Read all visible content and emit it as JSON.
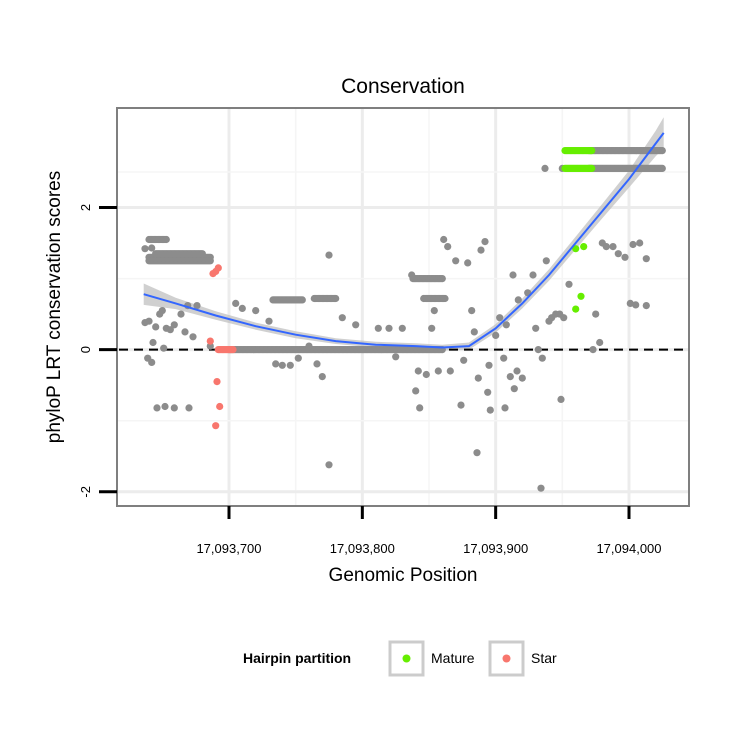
{
  "chart_data": {
    "type": "scatter",
    "title": "Conservation",
    "xlabel": "Genomic Position",
    "ylabel": "phyloP LRT conservation scores",
    "xlim": [
      17093616,
      17094045
    ],
    "ylim": [
      -2.2,
      3.4
    ],
    "x_ticks": [
      17093700,
      17093800,
      17093900,
      17094000
    ],
    "x_tick_labels": [
      "17,093,700",
      "17,093,800",
      "17,093,900",
      "17,094,000"
    ],
    "y_ticks": [
      -2,
      0,
      2
    ],
    "y_tick_labels": [
      "-2",
      "0",
      "2"
    ],
    "reference_line": {
      "y": 0,
      "style": "dashed"
    },
    "grid": true,
    "legend": {
      "title": "Hairpin partition",
      "position": "bottom",
      "entries": [
        {
          "label": "Mature",
          "color": "#66ee00"
        },
        {
          "label": "Star",
          "color": "#f8766d"
        }
      ]
    },
    "colors": {
      "other": "#8c8c8c",
      "mature": "#66ee00",
      "star": "#f8766d",
      "smooth": "#3366ff",
      "ribbon": "#c0c0c0"
    },
    "series": [
      {
        "group": "other",
        "runs": [
          {
            "x": [
              17093640,
              17093653
            ],
            "y": 1.55
          },
          {
            "x": [
              17093640,
              17093686
            ],
            "y": 1.3
          },
          {
            "x": [
              17093640,
              17093686
            ],
            "y": 1.25
          },
          {
            "x": [
              17093645,
              17093680
            ],
            "y": 1.35
          },
          {
            "x": [
              17093733,
              17093755
            ],
            "y": 0.7
          },
          {
            "x": [
              17093764,
              17093780
            ],
            "y": 0.72
          },
          {
            "x": [
              17093700,
              17093860
            ],
            "y": 0.0
          },
          {
            "x": [
              17093838,
              17093860
            ],
            "y": 1.0
          },
          {
            "x": [
              17093846,
              17093862
            ],
            "y": 0.72
          },
          {
            "x": [
              17093970,
              17094025
            ],
            "y": 2.8
          },
          {
            "x": [
              17093970,
              17094025
            ],
            "y": 2.55
          }
        ],
        "points": [
          [
            17093637,
            1.42
          ],
          [
            17093642,
            1.43
          ],
          [
            17093637,
            0.38
          ],
          [
            17093640,
            0.4
          ],
          [
            17093645,
            0.32
          ],
          [
            17093639,
            -0.12
          ],
          [
            17093642,
            -0.18
          ],
          [
            17093643,
            0.1
          ],
          [
            17093648,
            0.5
          ],
          [
            17093650,
            0.55
          ],
          [
            17093653,
            0.3
          ],
          [
            17093656,
            0.28
          ],
          [
            17093659,
            0.35
          ],
          [
            17093664,
            0.5
          ],
          [
            17093669,
            0.62
          ],
          [
            17093676,
            0.62
          ],
          [
            17093673,
            0.18
          ],
          [
            17093667,
            0.25
          ],
          [
            17093651,
            0.02
          ],
          [
            17093646,
            -0.82
          ],
          [
            17093652,
            -0.8
          ],
          [
            17093659,
            -0.82
          ],
          [
            17093670,
            -0.82
          ],
          [
            17093686,
            0.05
          ],
          [
            17093705,
            0.65
          ],
          [
            17093710,
            0.58
          ],
          [
            17093720,
            0.55
          ],
          [
            17093730,
            0.4
          ],
          [
            17093735,
            -0.2
          ],
          [
            17093740,
            -0.22
          ],
          [
            17093746,
            -0.22
          ],
          [
            17093752,
            -0.12
          ],
          [
            17093760,
            0.05
          ],
          [
            17093766,
            -0.2
          ],
          [
            17093770,
            -0.38
          ],
          [
            17093775,
            1.33
          ],
          [
            17093775,
            -1.62
          ],
          [
            17093785,
            0.45
          ],
          [
            17093795,
            0.35
          ],
          [
            17093812,
            0.3
          ],
          [
            17093820,
            0.3
          ],
          [
            17093825,
            -0.1
          ],
          [
            17093830,
            0.3
          ],
          [
            17093837,
            1.05
          ],
          [
            17093840,
            -0.58
          ],
          [
            17093843,
            -0.82
          ],
          [
            17093842,
            -0.3
          ],
          [
            17093848,
            -0.35
          ],
          [
            17093852,
            0.3
          ],
          [
            17093854,
            0.55
          ],
          [
            17093857,
            -0.3
          ],
          [
            17093861,
            1.55
          ],
          [
            17093864,
            1.45
          ],
          [
            17093866,
            -0.3
          ],
          [
            17093870,
            1.25
          ],
          [
            17093876,
            -0.15
          ],
          [
            17093874,
            -0.78
          ],
          [
            17093879,
            1.22
          ],
          [
            17093882,
            0.55
          ],
          [
            17093884,
            0.25
          ],
          [
            17093887,
            -0.4
          ],
          [
            17093889,
            1.4
          ],
          [
            17093892,
            1.52
          ],
          [
            17093894,
            -0.6
          ],
          [
            17093895,
            -0.22
          ],
          [
            17093896,
            -0.85
          ],
          [
            17093900,
            0.2
          ],
          [
            17093903,
            0.45
          ],
          [
            17093906,
            -0.12
          ],
          [
            17093907,
            -0.82
          ],
          [
            17093908,
            0.35
          ],
          [
            17093911,
            -0.38
          ],
          [
            17093913,
            1.05
          ],
          [
            17093914,
            -0.55
          ],
          [
            17093916,
            -0.3
          ],
          [
            17093917,
            0.7
          ],
          [
            17093920,
            -0.4
          ],
          [
            17093924,
            0.8
          ],
          [
            17093928,
            1.05
          ],
          [
            17093930,
            0.3
          ],
          [
            17093932,
            0.0
          ],
          [
            17093935,
            -0.12
          ],
          [
            17093938,
            1.25
          ],
          [
            17093940,
            0.4
          ],
          [
            17093942,
            0.45
          ],
          [
            17093945,
            0.5
          ],
          [
            17093948,
            0.5
          ],
          [
            17093934,
            -1.95
          ],
          [
            17093937,
            2.55
          ],
          [
            17093949,
            -0.7
          ],
          [
            17093951,
            0.45
          ],
          [
            17093955,
            0.92
          ],
          [
            17093886,
            -1.45
          ],
          [
            17093950,
            2.55
          ],
          [
            17093980,
            1.5
          ],
          [
            17093983,
            1.45
          ],
          [
            17093988,
            1.45
          ],
          [
            17093992,
            1.35
          ],
          [
            17093997,
            1.3
          ],
          [
            17094003,
            1.48
          ],
          [
            17094008,
            1.5
          ],
          [
            17094013,
            1.28
          ],
          [
            17093975,
            0.5
          ],
          [
            17093973,
            0.0
          ],
          [
            17093978,
            0.1
          ],
          [
            17094001,
            0.65
          ],
          [
            17094005,
            0.63
          ],
          [
            17094013,
            0.62
          ]
        ]
      },
      {
        "group": "mature",
        "runs": [
          {
            "x": [
              17093952,
              17093972
            ],
            "y": 2.8
          },
          {
            "x": [
              17093952,
              17093972
            ],
            "y": 2.55
          }
        ],
        "points": [
          [
            17093960,
            1.42
          ],
          [
            17093966,
            1.45
          ],
          [
            17093964,
            0.75
          ],
          [
            17093960,
            0.57
          ]
        ]
      },
      {
        "group": "star",
        "runs": [
          {
            "x": [
              17093692,
              17093703
            ],
            "y": 0.0
          }
        ],
        "points": [
          [
            17093688,
            1.07
          ],
          [
            17093690,
            1.1
          ],
          [
            17093692,
            1.15
          ],
          [
            17093686,
            0.12
          ],
          [
            17093691,
            -0.45
          ],
          [
            17093693,
            -0.8
          ],
          [
            17093690,
            -1.07
          ]
        ]
      }
    ],
    "smooth": {
      "method": "loess",
      "x": [
        17093636,
        17093660,
        17093690,
        17093720,
        17093750,
        17093780,
        17093810,
        17093840,
        17093860,
        17093880,
        17093900,
        17093920,
        17093940,
        17093960,
        17093980,
        17094000,
        17094020,
        17094026
      ],
      "y": [
        0.78,
        0.65,
        0.48,
        0.33,
        0.21,
        0.12,
        0.07,
        0.05,
        0.03,
        0.05,
        0.3,
        0.65,
        1.05,
        1.5,
        1.95,
        2.4,
        2.9,
        3.05
      ],
      "se": [
        0.15,
        0.08,
        0.06,
        0.05,
        0.05,
        0.04,
        0.04,
        0.04,
        0.04,
        0.05,
        0.06,
        0.07,
        0.08,
        0.09,
        0.1,
        0.12,
        0.18,
        0.22
      ]
    }
  }
}
